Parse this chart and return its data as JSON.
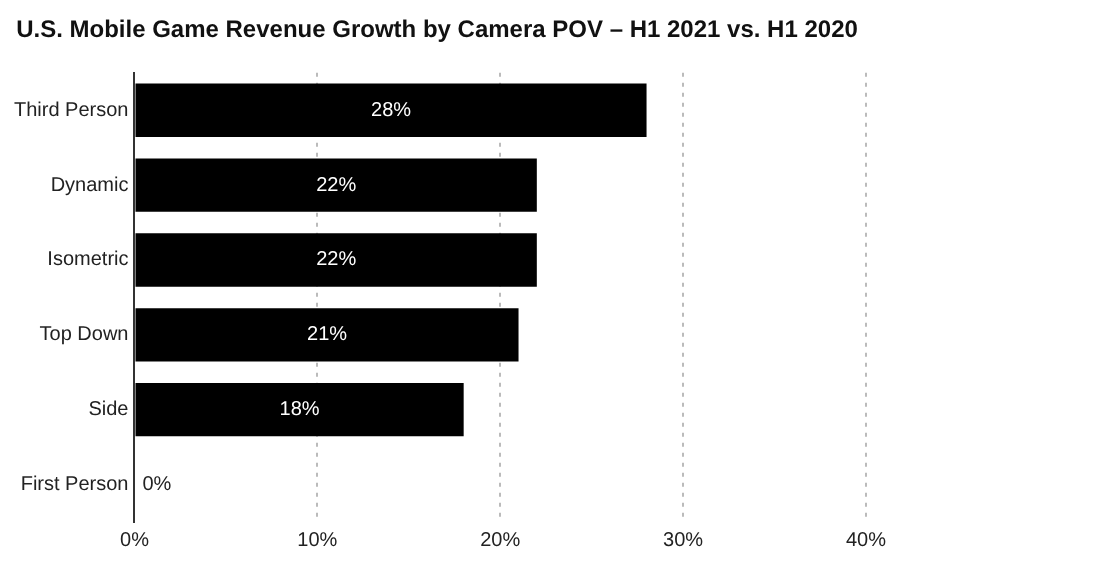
{
  "chart_data": {
    "type": "bar",
    "orientation": "horizontal",
    "title": "U.S. Mobile Game Revenue Growth by Camera POV – H1 2021 vs. H1 2020",
    "categories": [
      "Third Person",
      "Dynamic",
      "Isometric",
      "Top Down",
      "Side",
      "First Person"
    ],
    "values": [
      28,
      22,
      22,
      21,
      18,
      0
    ],
    "color": "#000000",
    "value_labels": [
      "28%",
      "22%",
      "22%",
      "21%",
      "18%",
      "0%"
    ],
    "xlim": [
      0,
      40
    ],
    "xticks": [
      {
        "value": 0,
        "label": "0%"
      },
      {
        "value": 10,
        "label": "10%"
      },
      {
        "value": 20,
        "label": "20%"
      },
      {
        "value": 30,
        "label": "30%"
      },
      {
        "value": 40,
        "label": "40%"
      }
    ],
    "grid": "x",
    "legend": false
  }
}
